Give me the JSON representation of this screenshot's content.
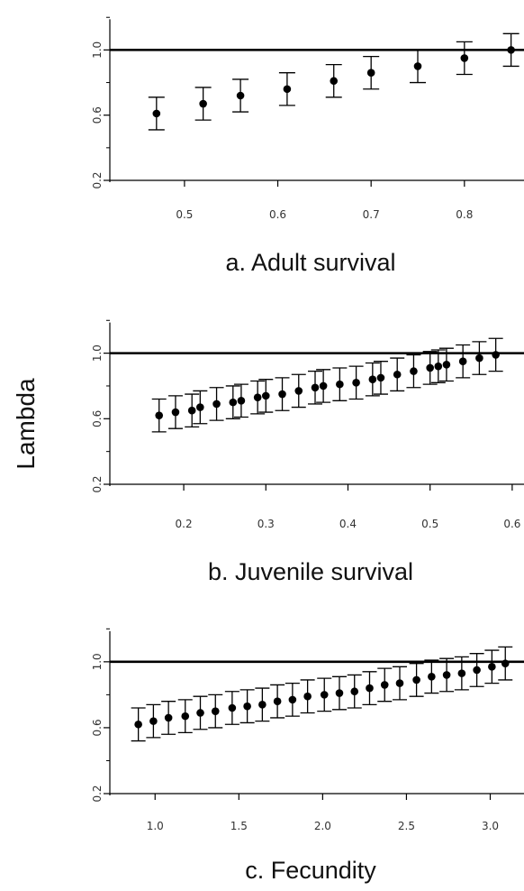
{
  "shared_ylabel": "Lambda",
  "chart_data": [
    {
      "type": "scatter",
      "title": "a. Adult survival",
      "xlabel": "a. Adult survival",
      "ylabel": "Lambda",
      "xticks": [
        0.5,
        0.6,
        0.7,
        0.8
      ],
      "xtick_labels": [
        "0.5",
        "0.6",
        "0.7",
        "0.8"
      ],
      "yticks": [
        0.2,
        0.6,
        1.0
      ],
      "ytick_labels": [
        "0.2",
        "0.6",
        "1.0"
      ],
      "xlim": [
        0.42,
        0.86
      ],
      "ylim": [
        0.2,
        1.24
      ],
      "reference_line": 1.0,
      "series": [
        {
          "x": [
            0.47,
            0.52,
            0.56,
            0.61,
            0.66,
            0.7,
            0.75,
            0.8,
            0.85
          ],
          "y": [
            0.61,
            0.67,
            0.72,
            0.76,
            0.81,
            0.86,
            0.9,
            0.95,
            1.0
          ],
          "lower": [
            0.51,
            0.57,
            0.62,
            0.66,
            0.71,
            0.76,
            0.8,
            0.85,
            0.9
          ],
          "upper": [
            0.71,
            0.77,
            0.82,
            0.86,
            0.91,
            0.96,
            1.0,
            1.05,
            1.1
          ]
        }
      ]
    },
    {
      "type": "scatter",
      "title": "b. Juvenile survival",
      "xlabel": "b. Juvenile survival",
      "ylabel": "Lambda",
      "xticks": [
        0.2,
        0.3,
        0.4,
        0.5,
        0.6
      ],
      "xtick_labels": [
        "0.2",
        "0.3",
        "0.4",
        "0.5",
        "0.6"
      ],
      "yticks": [
        0.2,
        0.6,
        1.0
      ],
      "ytick_labels": [
        "0.2",
        "0.6",
        "1.0"
      ],
      "xlim": [
        0.11,
        0.61
      ],
      "ylim": [
        0.2,
        1.24
      ],
      "reference_line": 1.0,
      "series": [
        {
          "x": [
            0.17,
            0.19,
            0.21,
            0.22,
            0.24,
            0.26,
            0.27,
            0.29,
            0.3,
            0.32,
            0.34,
            0.36,
            0.37,
            0.39,
            0.41,
            0.43,
            0.44,
            0.46,
            0.48,
            0.5,
            0.51,
            0.52,
            0.54,
            0.56,
            0.58
          ],
          "y": [
            0.62,
            0.64,
            0.65,
            0.67,
            0.69,
            0.7,
            0.71,
            0.73,
            0.74,
            0.75,
            0.77,
            0.79,
            0.8,
            0.81,
            0.82,
            0.84,
            0.85,
            0.87,
            0.89,
            0.91,
            0.92,
            0.93,
            0.95,
            0.97,
            0.99
          ],
          "lower": [
            0.52,
            0.54,
            0.55,
            0.57,
            0.59,
            0.6,
            0.61,
            0.63,
            0.64,
            0.65,
            0.67,
            0.69,
            0.7,
            0.71,
            0.72,
            0.74,
            0.75,
            0.77,
            0.79,
            0.81,
            0.82,
            0.83,
            0.85,
            0.87,
            0.89
          ],
          "upper": [
            0.72,
            0.74,
            0.75,
            0.77,
            0.79,
            0.8,
            0.81,
            0.83,
            0.84,
            0.85,
            0.87,
            0.89,
            0.9,
            0.91,
            0.92,
            0.94,
            0.95,
            0.97,
            0.99,
            1.01,
            1.02,
            1.03,
            1.05,
            1.07,
            1.09
          ]
        }
      ]
    },
    {
      "type": "scatter",
      "title": "c. Fecundity",
      "xlabel": "c. Fecundity",
      "ylabel": "Lambda",
      "xticks": [
        1.0,
        1.5,
        2.0,
        2.5,
        3.0
      ],
      "xtick_labels": [
        "1.0",
        "1.5",
        "2.0",
        "2.5",
        "3.0"
      ],
      "yticks": [
        0.2,
        0.6,
        1.0
      ],
      "ytick_labels": [
        "0.2",
        "0.6",
        "1.0"
      ],
      "xlim": [
        0.73,
        3.18
      ],
      "ylim": [
        0.2,
        1.24
      ],
      "reference_line": 1.0,
      "series": [
        {
          "x": [
            0.9,
            0.99,
            1.08,
            1.18,
            1.27,
            1.36,
            1.46,
            1.55,
            1.64,
            1.73,
            1.82,
            1.91,
            2.01,
            2.1,
            2.19,
            2.28,
            2.37,
            2.46,
            2.56,
            2.65,
            2.74,
            2.83,
            2.92,
            3.01,
            3.09
          ],
          "y": [
            0.62,
            0.64,
            0.66,
            0.67,
            0.69,
            0.7,
            0.72,
            0.73,
            0.74,
            0.76,
            0.77,
            0.79,
            0.8,
            0.81,
            0.82,
            0.84,
            0.86,
            0.87,
            0.89,
            0.91,
            0.92,
            0.93,
            0.95,
            0.97,
            0.99
          ],
          "lower": [
            0.52,
            0.54,
            0.56,
            0.57,
            0.59,
            0.6,
            0.62,
            0.63,
            0.64,
            0.66,
            0.67,
            0.69,
            0.7,
            0.71,
            0.72,
            0.74,
            0.76,
            0.77,
            0.79,
            0.81,
            0.82,
            0.83,
            0.85,
            0.87,
            0.89
          ],
          "upper": [
            0.72,
            0.74,
            0.76,
            0.77,
            0.79,
            0.8,
            0.82,
            0.83,
            0.84,
            0.86,
            0.87,
            0.89,
            0.9,
            0.91,
            0.92,
            0.94,
            0.96,
            0.97,
            0.99,
            1.01,
            1.02,
            1.03,
            1.05,
            1.07,
            1.09
          ]
        }
      ]
    }
  ]
}
